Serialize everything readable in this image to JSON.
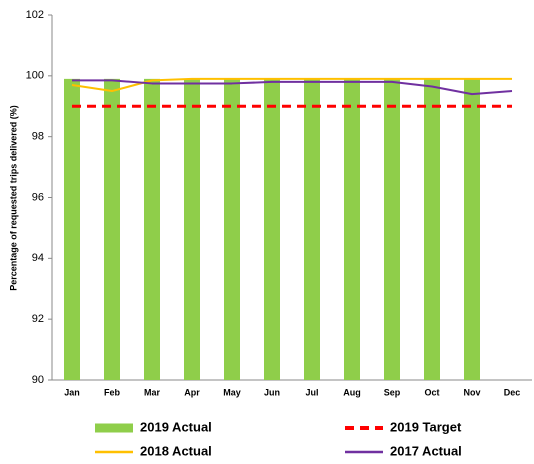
{
  "chart_data": {
    "type": "bar",
    "y_label": "Percentage of requested trips delivered (%)",
    "categories": [
      "Jan",
      "Feb",
      "Mar",
      "Apr",
      "May",
      "Jun",
      "Jul",
      "Aug",
      "Sep",
      "Oct",
      "Nov",
      "Dec"
    ],
    "ylim": [
      90,
      102
    ],
    "yticks": [
      90,
      92,
      94,
      96,
      98,
      100,
      102
    ],
    "series": [
      {
        "name": "2019 Actual",
        "type": "bar",
        "color": "#8fce4a",
        "values": [
          99.9,
          99.9,
          99.9,
          99.9,
          99.9,
          99.9,
          99.9,
          99.9,
          99.9,
          99.9,
          99.9,
          null
        ]
      },
      {
        "name": "2019 Target",
        "type": "line",
        "dashed": true,
        "color": "#ff0000",
        "values": [
          99,
          99,
          99,
          99,
          99,
          99,
          99,
          99,
          99,
          99,
          99,
          99
        ]
      },
      {
        "name": "2018 Actual",
        "type": "line",
        "color": "#ffc000",
        "values": [
          99.7,
          99.5,
          99.85,
          99.9,
          99.9,
          99.9,
          99.9,
          99.9,
          99.9,
          99.9,
          99.9,
          99.9
        ]
      },
      {
        "name": "2017 Actual",
        "type": "line",
        "color": "#7030a0",
        "values": [
          99.85,
          99.85,
          99.75,
          99.75,
          99.75,
          99.8,
          99.8,
          99.8,
          99.8,
          99.65,
          99.4,
          99.5
        ]
      }
    ],
    "legend": "bottom"
  }
}
